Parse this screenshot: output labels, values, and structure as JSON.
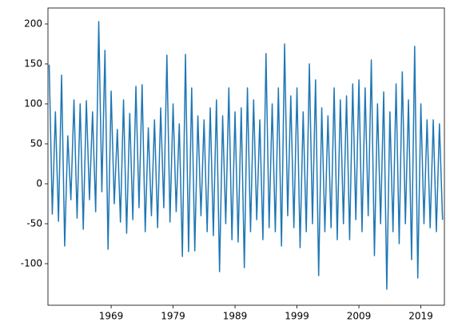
{
  "chart_data": {
    "type": "line",
    "x": [
      1959,
      1959.5,
      1960,
      1960.5,
      1961,
      1961.5,
      1962,
      1962.5,
      1963,
      1963.5,
      1964,
      1964.5,
      1965,
      1965.5,
      1966,
      1966.5,
      1967,
      1967.5,
      1968,
      1968.5,
      1969,
      1969.5,
      1970,
      1970.5,
      1971,
      1971.5,
      1972,
      1972.5,
      1973,
      1973.5,
      1974,
      1974.5,
      1975,
      1975.5,
      1976,
      1976.5,
      1977,
      1977.5,
      1978,
      1978.5,
      1979,
      1979.5,
      1980,
      1980.5,
      1981,
      1981.5,
      1982,
      1982.5,
      1983,
      1983.5,
      1984,
      1984.5,
      1985,
      1985.5,
      1986,
      1986.5,
      1987,
      1987.5,
      1988,
      1988.5,
      1989,
      1989.5,
      1990,
      1990.5,
      1991,
      1991.5,
      1992,
      1992.5,
      1993,
      1993.5,
      1994,
      1994.5,
      1995,
      1995.5,
      1996,
      1996.5,
      1997,
      1997.5,
      1998,
      1998.5,
      1999,
      1999.5,
      2000,
      2000.5,
      2001,
      2001.5,
      2002,
      2002.5,
      2003,
      2003.5,
      2004,
      2004.5,
      2005,
      2005.5,
      2006,
      2006.5,
      2007,
      2007.5,
      2008,
      2008.5,
      2009,
      2009.5,
      2010,
      2010.5,
      2011,
      2011.5,
      2012,
      2012.5,
      2013,
      2013.5,
      2014,
      2014.5,
      2015,
      2015.5,
      2016,
      2016.5,
      2017,
      2017.5,
      2018,
      2018.5,
      2019,
      2019.5,
      2020,
      2020.5,
      2021,
      2021.5,
      2022,
      2022.5
    ],
    "series": [
      {
        "color": "#1f77b4",
        "values": [
          149,
          -38,
          90,
          -47,
          136,
          -78,
          60,
          -20,
          105,
          -43,
          100,
          -57,
          104,
          -20,
          90,
          -35,
          203,
          -10,
          167,
          -82,
          116,
          -25,
          68,
          -48,
          105,
          -62,
          88,
          -45,
          122,
          -30,
          124,
          -60,
          70,
          -40,
          80,
          -55,
          95,
          -30,
          161,
          -48,
          100,
          -35,
          75,
          -91,
          162,
          -85,
          120,
          -84,
          85,
          -40,
          80,
          -60,
          95,
          -65,
          105,
          -110,
          85,
          -50,
          120,
          -70,
          90,
          -73,
          95,
          -105,
          120,
          -60,
          105,
          -45,
          80,
          -70,
          163,
          -55,
          100,
          -60,
          120,
          -78,
          175,
          -40,
          110,
          -55,
          120,
          -80,
          90,
          -60,
          150,
          -50,
          130,
          -115,
          95,
          -60,
          85,
          -55,
          120,
          -70,
          105,
          -50,
          110,
          -70,
          125,
          -45,
          130,
          -60,
          120,
          -40,
          155,
          -90,
          100,
          -50,
          115,
          -132,
          90,
          -60,
          125,
          -75,
          140,
          -50,
          105,
          -95,
          172,
          -118,
          100,
          -50,
          80,
          -55,
          80,
          -60,
          75,
          -45
        ]
      }
    ],
    "xlim": [
      1958.8,
      2022.8
    ],
    "xticks": [
      1969,
      1979,
      1989,
      1999,
      2009,
      2019
    ],
    "ylim": [
      -152,
      220
    ],
    "yticks": [
      -100,
      -50,
      0,
      50,
      100,
      150,
      200
    ]
  }
}
